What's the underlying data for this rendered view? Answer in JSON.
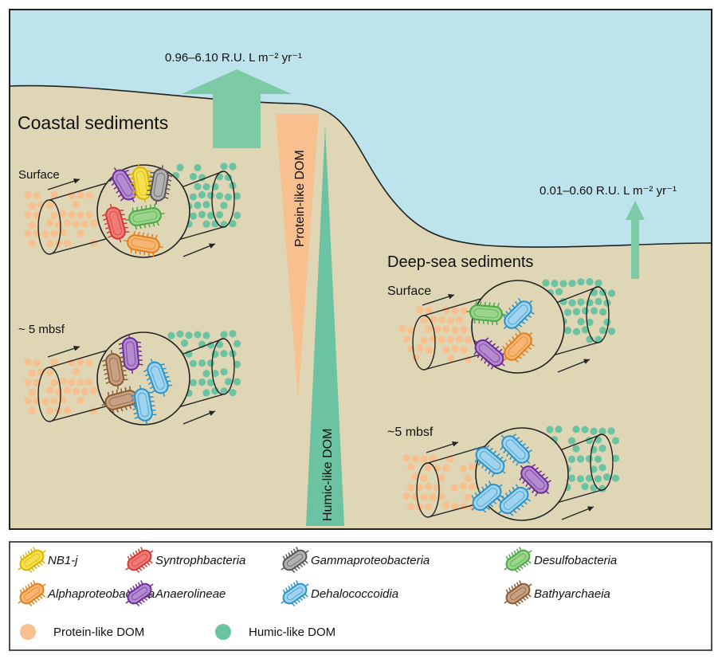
{
  "colors": {
    "water": "#bde3ec",
    "sediment": "#ded6b4",
    "protein": "#f7c08e",
    "humic": "#6cc3a1",
    "arrow": "#7ccaa6",
    "outline": "#222222"
  },
  "flux": {
    "coastal": "0.96–6.10 R.U. L m⁻² yr⁻¹",
    "deep": "0.01–0.60 R.U. L m⁻² yr⁻¹"
  },
  "regions": {
    "coastal": "Coastal sediments",
    "deep": "Deep-sea sediments"
  },
  "depths": {
    "coastal_surface": "Surface",
    "coastal_deep": "~ 5 mbsf",
    "deep_surface": "Surface",
    "deep_deep": "~5 mbsf"
  },
  "gradients": {
    "protein": "Protein-like DOM",
    "humic": "Humic-like DOM"
  },
  "legend": {
    "taxa": [
      {
        "name": "NB1-j",
        "color": "#f5e04f",
        "stroke": "#d8b400"
      },
      {
        "name": "Syntrophbacteria",
        "color": "#f07b76",
        "stroke": "#d03a35"
      },
      {
        "name": "Gammaproteobacteria",
        "color": "#b2b2b2",
        "stroke": "#555555"
      },
      {
        "name": "Desulfobacteria",
        "color": "#9ad58a",
        "stroke": "#4fa848"
      },
      {
        "name": "Alphaproteobacteria",
        "color": "#f8b672",
        "stroke": "#e07f1d"
      },
      {
        "name": "Anaerolineae",
        "color": "#b58bd0",
        "stroke": "#6b2c9a"
      },
      {
        "name": "Dehalococcoidia",
        "color": "#9fd3ef",
        "stroke": "#2c93c8"
      },
      {
        "name": "Bathyarchaeia",
        "color": "#c7a184",
        "stroke": "#8a5a34"
      }
    ],
    "dom": [
      {
        "name": "Protein-like DOM",
        "color": "#f7c08e"
      },
      {
        "name": "Humic-like DOM",
        "color": "#6cc3a1"
      }
    ]
  }
}
